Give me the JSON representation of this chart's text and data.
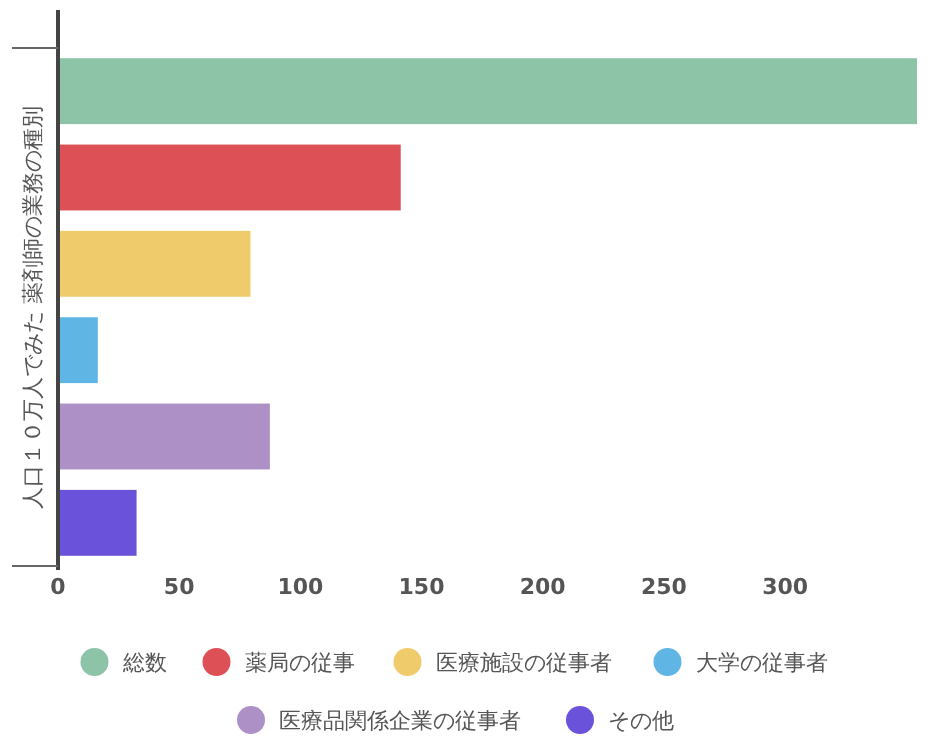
{
  "chart_data": {
    "type": "bar",
    "orientation": "horizontal",
    "ylabel": "人口１０万人でみた 薬剤師の業務の種別",
    "categories": [
      null,
      null,
      null,
      null,
      null,
      null
    ],
    "series": [
      {
        "name": "総数",
        "color": "#8dc3a7",
        "values": [
          354,
          null,
          null,
          null,
          null,
          null
        ]
      },
      {
        "name": "薬局の従事",
        "color": "#dd5156",
        "values": [
          null,
          141,
          null,
          null,
          null,
          null
        ]
      },
      {
        "name": "医療施設の従事者",
        "color": "#f0cb6b",
        "values": [
          null,
          null,
          79,
          null,
          null,
          null
        ]
      },
      {
        "name": "大学の従事者",
        "color": "#5fb5e4",
        "values": [
          null,
          null,
          null,
          16,
          null,
          null
        ]
      },
      {
        "name": "医療品関係企業の従事者",
        "color": "#ad91c6",
        "values": [
          null,
          null,
          null,
          null,
          87,
          null
        ]
      },
      {
        "name": "その他",
        "color": "#6b52db",
        "values": [
          null,
          null,
          null,
          null,
          null,
          32
        ]
      }
    ],
    "xlim": [
      0,
      354
    ],
    "xticks": [
      0,
      50,
      100,
      150,
      200,
      250,
      300
    ],
    "legend": "bottom"
  }
}
